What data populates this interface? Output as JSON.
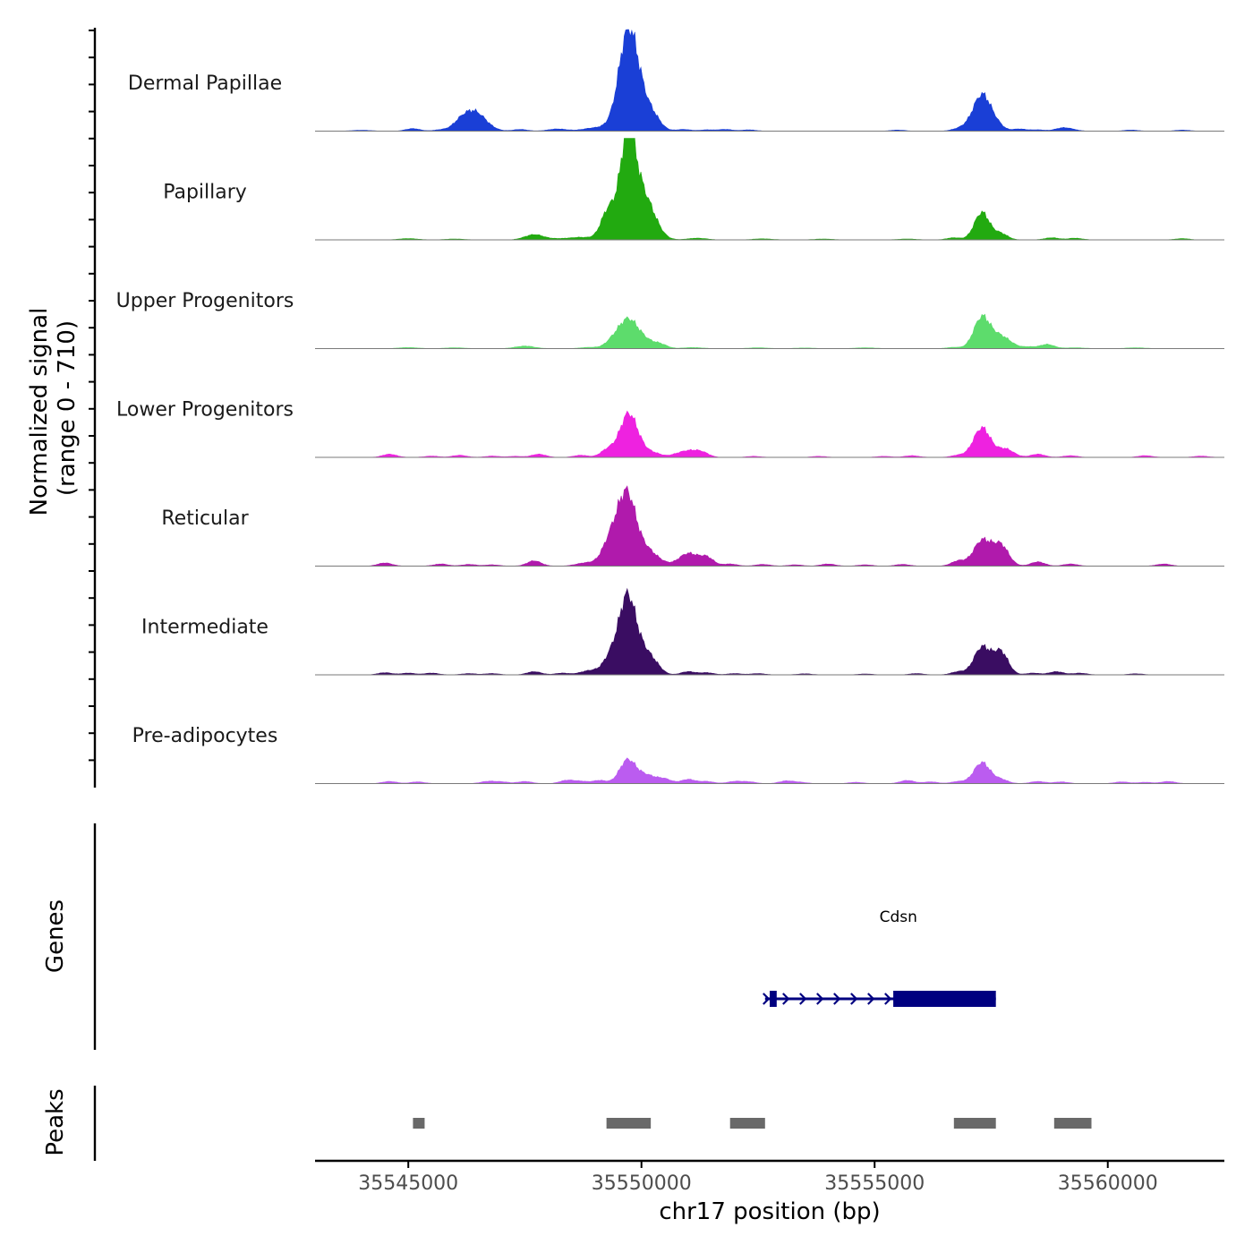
{
  "chart_data": {
    "type": "area",
    "y_axis_label": "Normalized signal",
    "y_axis_range_label": "(range 0 - 710)",
    "ylim": [
      0,
      710
    ],
    "xlabel": "chr17 position (bp)",
    "x_range": [
      35543000,
      35562500
    ],
    "x_ticks": [
      35545000,
      35550000,
      35555000,
      35560000
    ],
    "tracks": [
      {
        "name": "Dermal Papillae",
        "color": "#1a3fd6",
        "peaks": [
          [
            35544000,
            4,
            200
          ],
          [
            35545100,
            12,
            150
          ],
          [
            35545700,
            6,
            150
          ],
          [
            35546100,
            20,
            150
          ],
          [
            35546400,
            95,
            250
          ],
          [
            35547400,
            8,
            150
          ],
          [
            35548200,
            10,
            200
          ],
          [
            35549000,
            15,
            250
          ],
          [
            35549500,
            40,
            200
          ],
          [
            35549700,
            320,
            180
          ],
          [
            35549900,
            200,
            250
          ],
          [
            35550300,
            28,
            150
          ],
          [
            35550900,
            8,
            150
          ],
          [
            35551400,
            6,
            150
          ],
          [
            35551800,
            8,
            150
          ],
          [
            35552300,
            6,
            150
          ],
          [
            35555500,
            5,
            150
          ],
          [
            35556800,
            10,
            150
          ],
          [
            35557000,
            12,
            150
          ],
          [
            35557300,
            170,
            180
          ],
          [
            35557600,
            30,
            150
          ],
          [
            35558100,
            10,
            150
          ],
          [
            35558500,
            6,
            150
          ],
          [
            35559000,
            12,
            150
          ],
          [
            35559200,
            8,
            150
          ],
          [
            35560500,
            5,
            150
          ],
          [
            35561600,
            5,
            150
          ]
        ]
      },
      {
        "name": "Papillary",
        "color": "#22aa10",
        "peaks": [
          [
            35545000,
            6,
            200
          ],
          [
            35546000,
            4,
            200
          ],
          [
            35547700,
            25,
            200
          ],
          [
            35548200,
            4,
            200
          ],
          [
            35548700,
            12,
            250
          ],
          [
            35549300,
            140,
            160
          ],
          [
            35549700,
            380,
            150
          ],
          [
            35549900,
            220,
            250
          ],
          [
            35550200,
            60,
            200
          ],
          [
            35551200,
            8,
            200
          ],
          [
            35552600,
            5,
            200
          ],
          [
            35553900,
            4,
            200
          ],
          [
            35555700,
            4,
            200
          ],
          [
            35556700,
            10,
            150
          ],
          [
            35557300,
            130,
            160
          ],
          [
            35557700,
            30,
            150
          ],
          [
            35558800,
            10,
            150
          ],
          [
            35559300,
            8,
            150
          ],
          [
            35561600,
            6,
            150
          ]
        ]
      },
      {
        "name": "Upper Progenitors",
        "color": "#5ddc6c",
        "peaks": [
          [
            35545000,
            5,
            200
          ],
          [
            35546000,
            4,
            200
          ],
          [
            35547500,
            12,
            200
          ],
          [
            35548900,
            6,
            200
          ],
          [
            35549400,
            40,
            160
          ],
          [
            35549700,
            120,
            180
          ],
          [
            35550000,
            50,
            200
          ],
          [
            35550400,
            20,
            150
          ],
          [
            35551100,
            5,
            200
          ],
          [
            35552500,
            4,
            200
          ],
          [
            35553500,
            3,
            200
          ],
          [
            35554800,
            4,
            200
          ],
          [
            35556700,
            6,
            150
          ],
          [
            35557300,
            150,
            170
          ],
          [
            35557600,
            30,
            150
          ],
          [
            35557800,
            40,
            180
          ],
          [
            35558300,
            8,
            150
          ],
          [
            35558700,
            20,
            150
          ],
          [
            35559300,
            4,
            200
          ],
          [
            35560600,
            4,
            200
          ]
        ]
      },
      {
        "name": "Lower Progenitors",
        "color": "#ee22e0",
        "peaks": [
          [
            35544600,
            15,
            150
          ],
          [
            35545500,
            6,
            150
          ],
          [
            35546100,
            10,
            150
          ],
          [
            35546800,
            6,
            150
          ],
          [
            35547300,
            5,
            150
          ],
          [
            35547800,
            15,
            150
          ],
          [
            35548700,
            10,
            150
          ],
          [
            35549300,
            40,
            160
          ],
          [
            35549700,
            170,
            170
          ],
          [
            35549900,
            60,
            200
          ],
          [
            35550300,
            15,
            150
          ],
          [
            35550700,
            6,
            150
          ],
          [
            35551000,
            30,
            200
          ],
          [
            35551300,
            20,
            150
          ],
          [
            35552400,
            5,
            150
          ],
          [
            35553800,
            5,
            150
          ],
          [
            35555200,
            5,
            150
          ],
          [
            35555800,
            8,
            150
          ],
          [
            35556800,
            10,
            150
          ],
          [
            35557300,
            140,
            180
          ],
          [
            35557800,
            40,
            180
          ],
          [
            35558500,
            15,
            150
          ],
          [
            35559200,
            8,
            150
          ],
          [
            35560800,
            8,
            150
          ],
          [
            35562000,
            6,
            150
          ]
        ]
      },
      {
        "name": "Reticular",
        "color": "#b01aac",
        "peaks": [
          [
            35544500,
            15,
            150
          ],
          [
            35545700,
            10,
            150
          ],
          [
            35546300,
            8,
            150
          ],
          [
            35546800,
            6,
            150
          ],
          [
            35547700,
            25,
            150
          ],
          [
            35548800,
            15,
            200
          ],
          [
            35549400,
            160,
            200
          ],
          [
            35549700,
            280,
            170
          ],
          [
            35550000,
            80,
            200
          ],
          [
            35550300,
            30,
            200
          ],
          [
            35551000,
            60,
            200
          ],
          [
            35551400,
            40,
            150
          ],
          [
            35551900,
            10,
            150
          ],
          [
            35552600,
            8,
            150
          ],
          [
            35553300,
            6,
            150
          ],
          [
            35554000,
            10,
            150
          ],
          [
            35554800,
            6,
            150
          ],
          [
            35555600,
            8,
            150
          ],
          [
            35556800,
            25,
            150
          ],
          [
            35557300,
            120,
            180
          ],
          [
            35557700,
            100,
            170
          ],
          [
            35558500,
            20,
            150
          ],
          [
            35559200,
            10,
            150
          ],
          [
            35561200,
            10,
            150
          ]
        ]
      },
      {
        "name": "Intermediate",
        "color": "#3a0d62",
        "peaks": [
          [
            35544500,
            10,
            150
          ],
          [
            35545000,
            8,
            150
          ],
          [
            35545500,
            8,
            150
          ],
          [
            35546300,
            6,
            150
          ],
          [
            35546800,
            6,
            150
          ],
          [
            35547700,
            15,
            150
          ],
          [
            35548300,
            8,
            150
          ],
          [
            35548900,
            20,
            200
          ],
          [
            35549400,
            110,
            180
          ],
          [
            35549700,
            320,
            160
          ],
          [
            35550000,
            120,
            200
          ],
          [
            35550300,
            30,
            150
          ],
          [
            35551000,
            15,
            150
          ],
          [
            35551400,
            10,
            150
          ],
          [
            35552000,
            6,
            150
          ],
          [
            35552500,
            6,
            150
          ],
          [
            35553500,
            5,
            150
          ],
          [
            35554800,
            4,
            150
          ],
          [
            35555900,
            6,
            150
          ],
          [
            35556800,
            15,
            150
          ],
          [
            35557300,
            130,
            170
          ],
          [
            35557700,
            110,
            160
          ],
          [
            35558400,
            8,
            150
          ],
          [
            35558900,
            15,
            150
          ],
          [
            35559400,
            8,
            150
          ],
          [
            35560600,
            5,
            150
          ]
        ]
      },
      {
        "name": "Pre-adipocytes",
        "color": "#bb5cf0",
        "peaks": [
          [
            35544600,
            10,
            150
          ],
          [
            35545200,
            8,
            150
          ],
          [
            35546700,
            10,
            150
          ],
          [
            35547000,
            8,
            150
          ],
          [
            35547500,
            10,
            150
          ],
          [
            35548400,
            15,
            150
          ],
          [
            35548700,
            10,
            150
          ],
          [
            35549100,
            15,
            150
          ],
          [
            35549700,
            110,
            170
          ],
          [
            35550100,
            40,
            200
          ],
          [
            35550500,
            20,
            150
          ],
          [
            35551000,
            20,
            150
          ],
          [
            35551400,
            10,
            150
          ],
          [
            35552000,
            10,
            150
          ],
          [
            35552300,
            8,
            150
          ],
          [
            35553100,
            12,
            150
          ],
          [
            35553400,
            6,
            150
          ],
          [
            35554600,
            6,
            150
          ],
          [
            35555700,
            15,
            150
          ],
          [
            35556200,
            8,
            150
          ],
          [
            35556800,
            10,
            150
          ],
          [
            35557300,
            100,
            170
          ],
          [
            35557700,
            20,
            150
          ],
          [
            35558500,
            10,
            150
          ],
          [
            35559000,
            8,
            150
          ],
          [
            35560300,
            8,
            150
          ],
          [
            35560800,
            6,
            150
          ],
          [
            35561300,
            10,
            150
          ]
        ]
      }
    ],
    "genes_panel_label": "Genes",
    "genes": [
      {
        "name": "Cdsn",
        "strand": "+",
        "start": 35552650,
        "end": 35557600,
        "exons": [
          [
            35552750,
            35552900
          ],
          [
            35555400,
            35557600
          ]
        ],
        "color": "#000080"
      }
    ],
    "peaks_panel_label": "Peaks",
    "peak_color": "#696969",
    "peak_regions": [
      [
        35545100,
        35545350
      ],
      [
        35549250,
        35550200
      ],
      [
        35551900,
        35552650
      ],
      [
        35556700,
        35557600
      ],
      [
        35558850,
        35559650
      ]
    ]
  }
}
